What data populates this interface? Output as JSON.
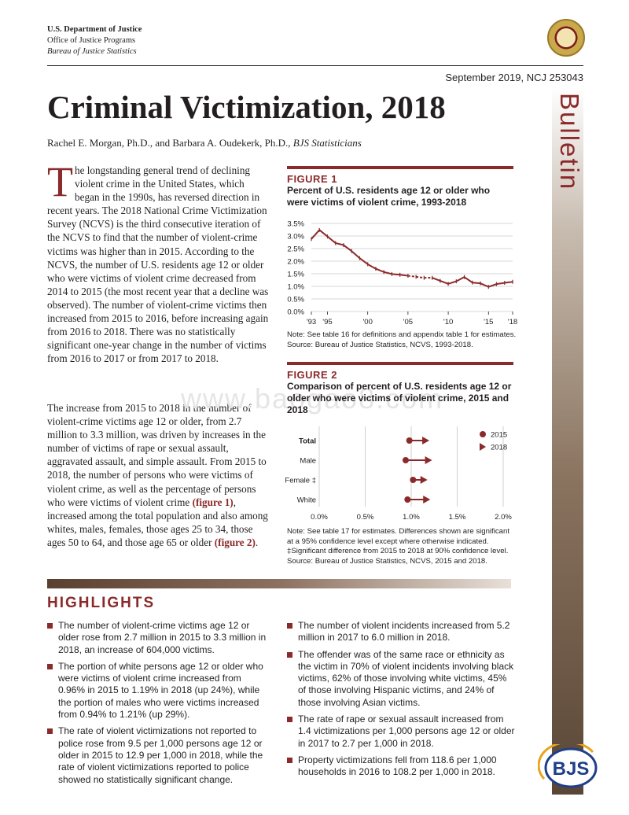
{
  "header": {
    "agency": "U.S. Department of Justice",
    "office": "Office of Justice Programs",
    "bureau": "Bureau of Justice Statistics",
    "date": "September 2019, NCJ 253043",
    "series_label": "Bulletin"
  },
  "title": "Criminal Victimization, 2018",
  "authors": "Rachel E. Morgan, Ph.D., and Barbara A. Oudekerk, Ph.D., ",
  "authors_role": "BJS Statisticians",
  "body": {
    "p1_dropcap": "T",
    "p1": "he longstanding general trend of declining violent crime in the United States, which began in the 1990s, has reversed direction in recent years. The 2018 National Crime Victimization Survey (NCVS) is the third consecutive iteration of the NCVS to find that the number of violent-crime victims was higher than in 2015. According to the NCVS, the number of U.S. residents age 12 or older who were victims of violent crime decreased from 2014 to 2015 (the most recent year that a decline was observed). The number of violent-crime victims then increased from 2015 to 2016, before increasing again from 2016 to 2018. There was no statistically significant one-year change in the number of victims from 2016 to 2017 or from 2017 to 2018.",
    "p2_a": "The increase from 2015 to 2018 in the number of violent-crime victims age 12 or older, from 2.7 million to 3.3 million, was driven by increases in the number of victims of rape or sexual assault, aggravated assault, and simple assault. From 2015 to 2018, the number of persons who were victims of violent crime, as well as the percentage of persons who were victims of violent crime ",
    "p2_link1": "(figure 1)",
    "p2_b": ", increased among the total population and also among whites, males, females, those ages 25 to 34, those ages 50 to 64, and those age 65 or older ",
    "p2_link2": "(figure 2)",
    "p2_c": "."
  },
  "figure1": {
    "label": "FIGURE 1",
    "title": "Percent of U.S. residents age 12 or older who were victims of violent crime, 1993-2018",
    "note": "Note: See table 16 for definitions and appendix table 1 for estimates.",
    "source": "Source: Bureau of Justice Statistics, NCVS, 1993-2018."
  },
  "figure2": {
    "label": "FIGURE 2",
    "title": "Comparison of percent of U.S. residents age 12 or older who were victims of violent crime, 2015 and 2018",
    "note": "Note: See table 17 for estimates. Differences shown are significant at a 95% confidence level except where otherwise indicated.",
    "note2": "‡Significant difference from 2015 to 2018 at 90% confidence level.",
    "source": "Source: Bureau of Justice Statistics, NCVS, 2015 and 2018."
  },
  "chart_data": [
    {
      "type": "line",
      "title": "Percent of U.S. residents age 12 or older who were victims of violent crime, 1993-2018",
      "x_tick_labels": [
        "'93",
        "'95",
        "'00",
        "'05",
        "'10",
        "'15",
        "'18"
      ],
      "x_ticks": [
        1993,
        1995,
        2000,
        2005,
        2010,
        2015,
        2018
      ],
      "y_tick_labels": [
        "0.0%",
        "0.5%",
        "1.0%",
        "1.5%",
        "2.0%",
        "2.5%",
        "3.0%",
        "3.5%"
      ],
      "ylim": [
        0,
        3.5
      ],
      "grid": true,
      "color": "#8b2a2a",
      "x": [
        1993,
        1994,
        1995,
        1996,
        1997,
        1998,
        1999,
        2000,
        2001,
        2002,
        2003,
        2004,
        2005,
        2006,
        2007,
        2008,
        2009,
        2010,
        2011,
        2012,
        2013,
        2014,
        2015,
        2016,
        2017,
        2018
      ],
      "y": [
        2.88,
        3.24,
        2.98,
        2.72,
        2.64,
        2.4,
        2.12,
        1.88,
        1.7,
        1.57,
        1.49,
        1.46,
        1.42,
        1.38,
        1.34,
        1.34,
        1.22,
        1.1,
        1.2,
        1.37,
        1.15,
        1.12,
        0.98,
        1.09,
        1.14,
        1.18
      ],
      "dashed_segment": [
        2005,
        2008
      ]
    },
    {
      "type": "dot_arrow",
      "title": "Comparison of percent of U.S. residents age 12 or older who were victims of violent crime, 2015 and 2018",
      "categories": [
        "Total",
        "Male",
        "Female ‡",
        "White"
      ],
      "bold_categories": [
        "Total"
      ],
      "xlim": [
        0,
        2.0
      ],
      "x_tick_labels": [
        "0.0%",
        "0.5%",
        "1.0%",
        "1.5%",
        "2.0%"
      ],
      "series": [
        {
          "name": "2015",
          "marker": "circle",
          "values": [
            0.98,
            0.94,
            1.02,
            0.96
          ]
        },
        {
          "name": "2018",
          "marker": "triangle",
          "values": [
            1.18,
            1.21,
            1.16,
            1.19
          ]
        }
      ],
      "legend": "top-right",
      "color": "#8b2a2a"
    }
  ],
  "highlights": {
    "heading": "HIGHLIGHTS",
    "left": [
      "The number of violent-crime victims age 12 or older rose from 2.7 million in 2015 to 3.3 million in 2018, an increase of 604,000 victims.",
      "The portion of white persons age 12 or older who were victims of violent crime increased from 0.96% in 2015 to 1.19% in 2018 (up 24%), while the portion of males who were victims increased from 0.94% to 1.21% (up 29%).",
      "The rate of violent victimizations not reported to police rose from 9.5 per 1,000 persons age 12 or older in 2015 to 12.9 per 1,000 in 2018, while the rate of violent victimizations reported to police showed no statistically significant change."
    ],
    "right": [
      "The number of violent incidents increased from 5.2 million in 2017 to 6.0 million in 2018.",
      "The offender was of the same race or ethnicity as the victim in 70% of violent incidents involving black victims, 62% of those involving white victims, 45% of those involving Hispanic victims, and 24% of those involving Asian victims.",
      "The rate of rape or sexual assault increased from 1.4 victimizations per 1,000 persons age 12 or older in 2017 to 2.7 per 1,000 in 2018.",
      "Property victimizations fell from 118.6 per 1,000 households in 2016 to 108.2 per 1,000 in 2018."
    ]
  },
  "logo": {
    "text": "BJS"
  },
  "watermark": "www.baogao8.com"
}
